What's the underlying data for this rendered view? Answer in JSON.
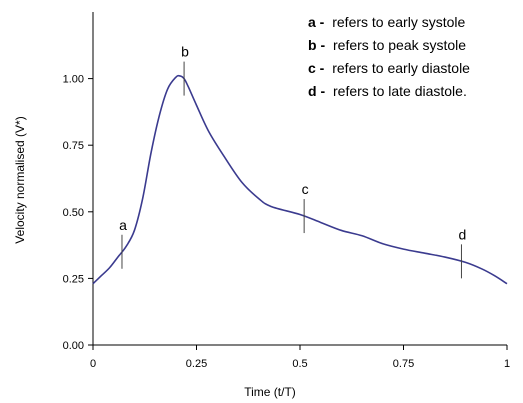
{
  "chart_data": {
    "type": "line",
    "xlabel": "Time (t/T)",
    "ylabel": "Velocity normalised (V*)",
    "xlim": [
      0,
      1
    ],
    "ylim": [
      0,
      1.25
    ],
    "x_ticks": [
      "0",
      "0.25",
      "0.5",
      "0.75",
      "1"
    ],
    "x_tick_values": [
      0,
      0.25,
      0.5,
      0.75,
      1
    ],
    "y_ticks": [
      "0.00",
      "0.25",
      "0.50",
      "0.75",
      "1.00"
    ],
    "y_tick_values": [
      0,
      0.25,
      0.5,
      0.75,
      1.0
    ],
    "series": [
      {
        "color": "#3b3b8f",
        "x": [
          0,
          0.02,
          0.04,
          0.06,
          0.08,
          0.1,
          0.12,
          0.14,
          0.16,
          0.18,
          0.2,
          0.21,
          0.22,
          0.23,
          0.25,
          0.28,
          0.32,
          0.36,
          0.4,
          0.43,
          0.5,
          0.55,
          0.6,
          0.65,
          0.7,
          0.75,
          0.8,
          0.85,
          0.9,
          0.94,
          0.97,
          1.0
        ],
        "y": [
          0.23,
          0.26,
          0.29,
          0.33,
          0.37,
          0.43,
          0.55,
          0.72,
          0.86,
          0.96,
          1.005,
          1.01,
          1.0,
          0.97,
          0.9,
          0.8,
          0.7,
          0.61,
          0.55,
          0.52,
          0.49,
          0.46,
          0.43,
          0.41,
          0.38,
          0.36,
          0.345,
          0.33,
          0.31,
          0.285,
          0.26,
          0.23
        ]
      }
    ],
    "markers": [
      {
        "label": "a",
        "x": 0.07
      },
      {
        "label": "b",
        "x": 0.22
      },
      {
        "label": "c",
        "x": 0.51
      },
      {
        "label": "d",
        "x": 0.89
      }
    ],
    "legend": {
      "placement": "top-right",
      "entries": [
        {
          "key": "a -",
          "text": "refers to early systole"
        },
        {
          "key": "b -",
          "text": "refers to peak systole"
        },
        {
          "key": "c -",
          "text": "refers to early diastole"
        },
        {
          "key": "d -",
          "text": "refers to late diastole."
        }
      ]
    },
    "grid": false
  }
}
